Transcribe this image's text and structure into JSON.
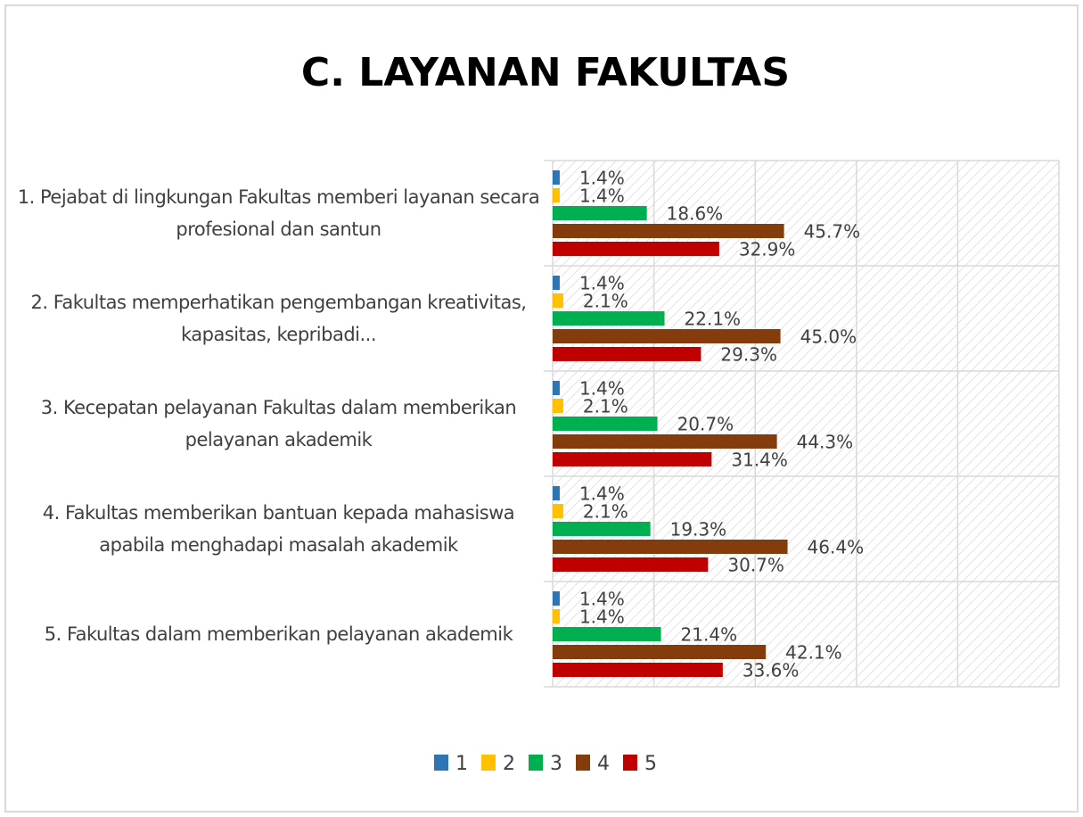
{
  "chart_data": {
    "type": "bar",
    "orientation": "horizontal",
    "title": "C. LAYANAN FAKULTAS",
    "categories": [
      "1. Pejabat di lingkungan Fakultas memberi layanan secara profesional dan santun",
      "2. Fakultas memperhatikan pengembangan kreativitas, kapasitas, kepribadi...",
      "3. Kecepatan pelayanan Fakultas dalam memberikan pelayanan akademik",
      "4. Fakultas memberikan bantuan kepada mahasiswa apabila menghadapi masalah akademik",
      "5. Fakultas dalam memberikan pelayanan akademik"
    ],
    "series": [
      {
        "name": "1",
        "color": "#2e75b6",
        "values": [
          1.4,
          1.4,
          1.4,
          1.4,
          1.4
        ],
        "value_labels": [
          "1.4%",
          "1.4%",
          "1.4%",
          "1.4%",
          "1.4%"
        ]
      },
      {
        "name": "2",
        "color": "#ffc000",
        "values": [
          1.4,
          2.1,
          2.1,
          2.1,
          1.4
        ],
        "value_labels": [
          "1.4%",
          "2.1%",
          "2.1%",
          "2.1%",
          "1.4%"
        ]
      },
      {
        "name": "3",
        "color": "#00b050",
        "values": [
          18.6,
          22.1,
          20.7,
          19.3,
          21.4
        ],
        "value_labels": [
          "18.6%",
          "22.1%",
          "20.7%",
          "19.3%",
          "21.4%"
        ]
      },
      {
        "name": "4",
        "color": "#843c0c",
        "values": [
          45.7,
          45.0,
          44.3,
          46.4,
          42.1
        ],
        "value_labels": [
          "45.7%",
          "45.0%",
          "44.3%",
          "46.4%",
          "42.1%"
        ]
      },
      {
        "name": "5",
        "color": "#c00000",
        "values": [
          32.9,
          29.3,
          31.4,
          30.7,
          33.6
        ],
        "value_labels": [
          "32.9%",
          "29.3%",
          "31.4%",
          "30.7%",
          "33.6%"
        ]
      }
    ],
    "xlim": [
      0,
      100
    ],
    "xticks": [
      0,
      20,
      40,
      60,
      80,
      100
    ],
    "grid": true,
    "legend": "bottom"
  }
}
